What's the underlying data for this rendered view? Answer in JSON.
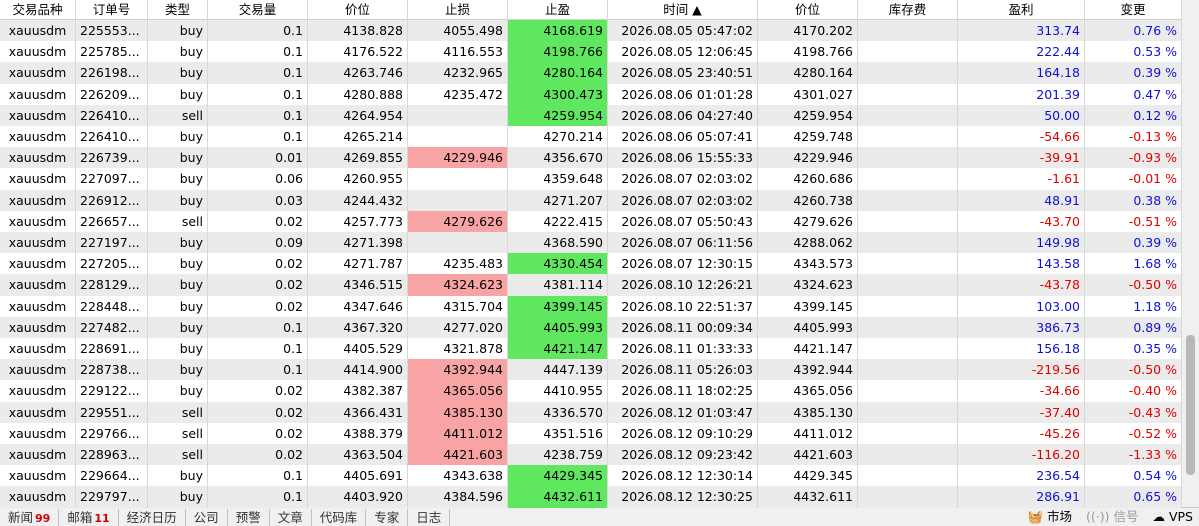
{
  "table": {
    "headers": [
      "交易品种",
      "订单号",
      "类型",
      "交易量",
      "价位",
      "止损",
      "止盈",
      "时间 ▲",
      "价位",
      "库存费",
      "盈利",
      "变更"
    ],
    "rows": [
      {
        "cells": [
          "xauusdm",
          "225553...",
          "buy",
          "0.1",
          "4138.828",
          "4055.498",
          "4168.619",
          "2026.08.05 05:47:02",
          "4170.202",
          "",
          "313.74",
          "0.76 %"
        ],
        "hit": "tp"
      },
      {
        "cells": [
          "xauusdm",
          "225785...",
          "buy",
          "0.1",
          "4176.522",
          "4116.553",
          "4198.766",
          "2026.08.05 12:06:45",
          "4198.766",
          "",
          "222.44",
          "0.53 %"
        ],
        "hit": "tp"
      },
      {
        "cells": [
          "xauusdm",
          "226198...",
          "buy",
          "0.1",
          "4263.746",
          "4232.965",
          "4280.164",
          "2026.08.05 23:40:51",
          "4280.164",
          "",
          "164.18",
          "0.39 %"
        ],
        "hit": "tp"
      },
      {
        "cells": [
          "xauusdm",
          "226209...",
          "buy",
          "0.1",
          "4280.888",
          "4235.472",
          "4300.473",
          "2026.08.06 01:01:28",
          "4301.027",
          "",
          "201.39",
          "0.47 %"
        ],
        "hit": "tp"
      },
      {
        "cells": [
          "xauusdm",
          "226410...",
          "sell",
          "0.1",
          "4264.954",
          "",
          "4259.954",
          "2026.08.06 04:27:40",
          "4259.954",
          "",
          "50.00",
          "0.12 %"
        ],
        "hit": "tp"
      },
      {
        "cells": [
          "xauusdm",
          "226410...",
          "buy",
          "0.1",
          "4265.214",
          "",
          "4270.214",
          "2026.08.06 05:07:41",
          "4259.748",
          "",
          "-54.66",
          "-0.13 %"
        ],
        "hit": null
      },
      {
        "cells": [
          "xauusdm",
          "226739...",
          "buy",
          "0.01",
          "4269.855",
          "4229.946",
          "4356.670",
          "2026.08.06 15:55:33",
          "4229.946",
          "",
          "-39.91",
          "-0.93 %"
        ],
        "hit": "sl"
      },
      {
        "cells": [
          "xauusdm",
          "227097...",
          "buy",
          "0.06",
          "4260.955",
          "",
          "4359.648",
          "2026.08.07 02:03:02",
          "4260.686",
          "",
          "-1.61",
          "-0.01 %"
        ],
        "hit": null
      },
      {
        "cells": [
          "xauusdm",
          "226912...",
          "buy",
          "0.03",
          "4244.432",
          "",
          "4271.207",
          "2026.08.07 02:03:02",
          "4260.738",
          "",
          "48.91",
          "0.38 %"
        ],
        "hit": null
      },
      {
        "cells": [
          "xauusdm",
          "226657...",
          "sell",
          "0.02",
          "4257.773",
          "4279.626",
          "4222.415",
          "2026.08.07 05:50:43",
          "4279.626",
          "",
          "-43.70",
          "-0.51 %"
        ],
        "hit": "sl"
      },
      {
        "cells": [
          "xauusdm",
          "227197...",
          "buy",
          "0.09",
          "4271.398",
          "",
          "4368.590",
          "2026.08.07 06:11:56",
          "4288.062",
          "",
          "149.98",
          "0.39 %"
        ],
        "hit": null
      },
      {
        "cells": [
          "xauusdm",
          "227205...",
          "buy",
          "0.02",
          "4271.787",
          "4235.483",
          "4330.454",
          "2026.08.07 12:30:15",
          "4343.573",
          "",
          "143.58",
          "1.68 %"
        ],
        "hit": "tp"
      },
      {
        "cells": [
          "xauusdm",
          "228129...",
          "buy",
          "0.02",
          "4346.515",
          "4324.623",
          "4381.114",
          "2026.08.10 12:26:21",
          "4324.623",
          "",
          "-43.78",
          "-0.50 %"
        ],
        "hit": "sl"
      },
      {
        "cells": [
          "xauusdm",
          "228448...",
          "buy",
          "0.02",
          "4347.646",
          "4315.704",
          "4399.145",
          "2026.08.10 22:51:37",
          "4399.145",
          "",
          "103.00",
          "1.18 %"
        ],
        "hit": "tp"
      },
      {
        "cells": [
          "xauusdm",
          "227482...",
          "buy",
          "0.1",
          "4367.320",
          "4277.020",
          "4405.993",
          "2026.08.11 00:09:34",
          "4405.993",
          "",
          "386.73",
          "0.89 %"
        ],
        "hit": "tp"
      },
      {
        "cells": [
          "xauusdm",
          "228691...",
          "buy",
          "0.1",
          "4405.529",
          "4321.878",
          "4421.147",
          "2026.08.11 01:33:33",
          "4421.147",
          "",
          "156.18",
          "0.35 %"
        ],
        "hit": "tp"
      },
      {
        "cells": [
          "xauusdm",
          "228738...",
          "buy",
          "0.1",
          "4414.900",
          "4392.944",
          "4447.139",
          "2026.08.11 05:26:03",
          "4392.944",
          "",
          "-219.56",
          "-0.50 %"
        ],
        "hit": "sl"
      },
      {
        "cells": [
          "xauusdm",
          "229122...",
          "buy",
          "0.02",
          "4382.387",
          "4365.056",
          "4410.955",
          "2026.08.11 18:02:25",
          "4365.056",
          "",
          "-34.66",
          "-0.40 %"
        ],
        "hit": "sl"
      },
      {
        "cells": [
          "xauusdm",
          "229551...",
          "sell",
          "0.02",
          "4366.431",
          "4385.130",
          "4336.570",
          "2026.08.12 01:03:47",
          "4385.130",
          "",
          "-37.40",
          "-0.43 %"
        ],
        "hit": "sl"
      },
      {
        "cells": [
          "xauusdm",
          "229766...",
          "sell",
          "0.02",
          "4388.379",
          "4411.012",
          "4351.516",
          "2026.08.12 09:10:29",
          "4411.012",
          "",
          "-45.26",
          "-0.52 %"
        ],
        "hit": "sl"
      },
      {
        "cells": [
          "xauusdm",
          "228963...",
          "sell",
          "0.02",
          "4363.504",
          "4421.603",
          "4238.759",
          "2026.08.12 09:23:42",
          "4421.603",
          "",
          "-116.20",
          "-1.33 %"
        ],
        "hit": "sl"
      },
      {
        "cells": [
          "xauusdm",
          "229664...",
          "buy",
          "0.1",
          "4405.691",
          "4343.638",
          "4429.345",
          "2026.08.12 12:30:14",
          "4429.345",
          "",
          "236.54",
          "0.54 %"
        ],
        "hit": "tp"
      },
      {
        "cells": [
          "xauusdm",
          "229797...",
          "buy",
          "0.1",
          "4403.920",
          "4384.596",
          "4432.611",
          "2026.08.12 12:30:25",
          "4432.611",
          "",
          "286.91",
          "0.65 %"
        ],
        "hit": "tp"
      }
    ]
  },
  "tabs": [
    {
      "label": "新闻",
      "badge": "99"
    },
    {
      "label": "邮箱",
      "badge": "11"
    },
    {
      "label": "经济日历"
    },
    {
      "label": "公司"
    },
    {
      "label": "预警"
    },
    {
      "label": "文章"
    },
    {
      "label": "代码库"
    },
    {
      "label": "专家"
    },
    {
      "label": "日志"
    }
  ],
  "status": {
    "market": "市场",
    "signals": "信号",
    "vps": "VPS"
  }
}
